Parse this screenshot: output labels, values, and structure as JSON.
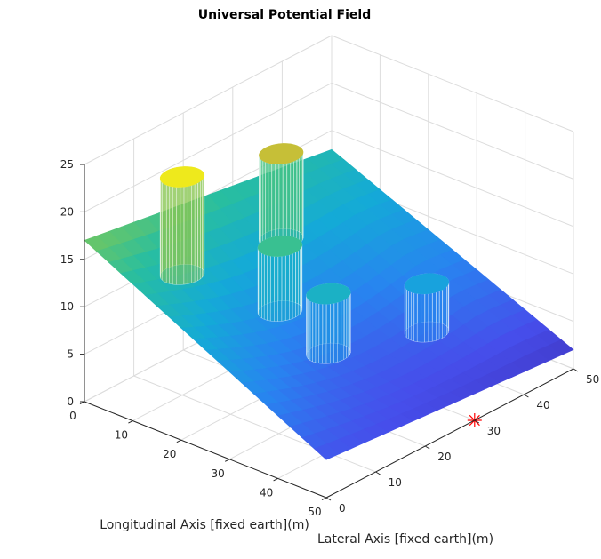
{
  "chart_data": {
    "type": "surface3d",
    "title": "Universal Potential Field",
    "xlabel": "Longitudinal Axis [fixed earth](m)",
    "ylabel": "Lateral Axis [fixed earth](m)",
    "zlabel": "",
    "xlim": [
      0,
      50
    ],
    "ylim": [
      0,
      50
    ],
    "zlim": [
      0,
      25
    ],
    "xticks": [
      "0",
      "10",
      "20",
      "30",
      "40",
      "50"
    ],
    "yticks": [
      "0",
      "10",
      "20",
      "30",
      "40",
      "50"
    ],
    "zticks": [
      "0",
      "5",
      "10",
      "15",
      "20",
      "25"
    ],
    "grid": true,
    "colormap": "parula",
    "surface": {
      "description_values": "attractive quadratic bowl with goal marker",
      "corner_heights": {
        "x0_y0": 17,
        "x0_y50": 13,
        "x50_y0": 4,
        "x50_y50": 2
      },
      "minimum_at": [
        50,
        30
      ]
    },
    "obstacles": [
      {
        "x": 10,
        "y": 10,
        "top_z": 23
      },
      {
        "x": 10,
        "y": 30,
        "top_z": 20
      },
      {
        "x": 20,
        "y": 20,
        "top_z": 15
      },
      {
        "x": 30,
        "y": 20,
        "top_z": 12
      },
      {
        "x": 35,
        "y": 35,
        "top_z": 10
      }
    ],
    "goal_marker": {
      "x": 50,
      "y": 30,
      "z": 0,
      "symbol": "*",
      "color": "#ff0000"
    }
  }
}
